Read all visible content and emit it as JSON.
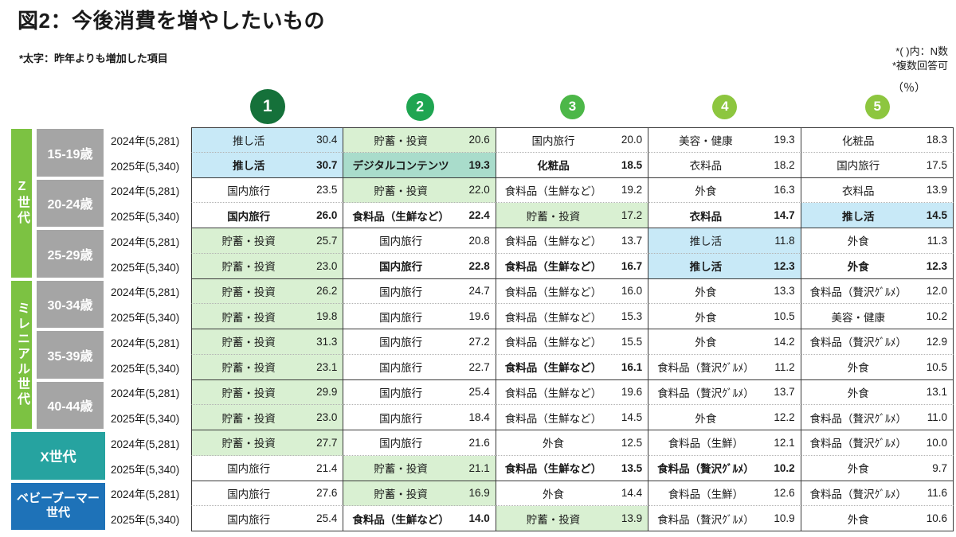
{
  "page": {
    "title": "図2：今後消費を増やしたいもの",
    "legend_note": "*太字：昨年よりも増加した項目",
    "notes_right": [
      "*( )内：N数",
      "*複数回答可"
    ],
    "unit_label": "（％）"
  },
  "rank_circles": [
    "1",
    "2",
    "3",
    "4",
    "5"
  ],
  "colors": {
    "gen_green": "#7cc242",
    "gen_teal": "#26a3a0",
    "gen_blue": "#1e72b8",
    "age_gray": "#a5a5a5",
    "cell_blue": "#c8e9f7",
    "cell_green": "#d9f0d2",
    "cell_teal": "#a9dccb",
    "rank1": "#15713a",
    "rank2": "#1fa551",
    "rank3": "#4cb748",
    "rank4": "#8dc63f",
    "rank5": "#8dc63f"
  },
  "sidebar": {
    "generations": [
      {
        "label": "Z世代",
        "style": "green",
        "vertical": true,
        "row_start": 1,
        "row_span": 6,
        "col_span": 1
      },
      {
        "label": "ミレニアル世代",
        "style": "green",
        "vertical": true,
        "row_start": 7,
        "row_span": 6,
        "col_span": 1
      },
      {
        "label": "X世代",
        "style": "teal",
        "vertical": false,
        "row_start": 13,
        "row_span": 2,
        "col_span": 2
      },
      {
        "label": "ベビーブーマー世代",
        "style": "blue",
        "vertical": false,
        "row_start": 15,
        "row_span": 2,
        "col_span": 2
      }
    ],
    "age_groups": [
      {
        "label": "15-19歳",
        "row_start": 1
      },
      {
        "label": "20-24歳",
        "row_start": 3
      },
      {
        "label": "25-29歳",
        "row_start": 5
      },
      {
        "label": "30-34歳",
        "row_start": 7
      },
      {
        "label": "35-39歳",
        "row_start": 9
      },
      {
        "label": "40-44歳",
        "row_start": 11
      }
    ]
  },
  "chart_data": {
    "type": "table",
    "title": "図2：今後消費を増やしたいもの",
    "unit": "%",
    "rank_headers": [
      "1",
      "2",
      "3",
      "4",
      "5"
    ],
    "bold_meaning": "太字：昨年よりも増加した項目",
    "row_groups": [
      {
        "generation": "Z世代",
        "segment": "15-19歳",
        "rows": [
          {
            "year": "2024年(5,281)",
            "ranks": [
              {
                "item": "推し活",
                "value": "30.4",
                "hl": "blue",
                "bold": false
              },
              {
                "item": "貯蓄・投資",
                "value": "20.6",
                "hl": "green",
                "bold": false
              },
              {
                "item": "国内旅行",
                "value": "20.0",
                "hl": "none",
                "bold": false
              },
              {
                "item": "美容・健康",
                "value": "19.3",
                "hl": "none",
                "bold": false
              },
              {
                "item": "化粧品",
                "value": "18.3",
                "hl": "none",
                "bold": false
              }
            ]
          },
          {
            "year": "2025年(5,340)",
            "ranks": [
              {
                "item": "推し活",
                "value": "30.7",
                "hl": "blue",
                "bold": true
              },
              {
                "item": "デジタルコンテンツ",
                "value": "19.3",
                "hl": "teal",
                "bold": true
              },
              {
                "item": "化粧品",
                "value": "18.5",
                "hl": "none",
                "bold": true
              },
              {
                "item": "衣料品",
                "value": "18.2",
                "hl": "none",
                "bold": false
              },
              {
                "item": "国内旅行",
                "value": "17.5",
                "hl": "none",
                "bold": false
              }
            ]
          }
        ]
      },
      {
        "generation": "Z世代",
        "segment": "20-24歳",
        "rows": [
          {
            "year": "2024年(5,281)",
            "ranks": [
              {
                "item": "国内旅行",
                "value": "23.5",
                "hl": "none",
                "bold": false
              },
              {
                "item": "貯蓄・投資",
                "value": "22.0",
                "hl": "green",
                "bold": false
              },
              {
                "item": "食料品（生鮮など）",
                "value": "19.2",
                "hl": "none",
                "bold": false
              },
              {
                "item": "外食",
                "value": "16.3",
                "hl": "none",
                "bold": false
              },
              {
                "item": "衣料品",
                "value": "13.9",
                "hl": "none",
                "bold": false
              }
            ]
          },
          {
            "year": "2025年(5,340)",
            "ranks": [
              {
                "item": "国内旅行",
                "value": "26.0",
                "hl": "none",
                "bold": true
              },
              {
                "item": "食料品（生鮮など）",
                "value": "22.4",
                "hl": "none",
                "bold": true
              },
              {
                "item": "貯蓄・投資",
                "value": "17.2",
                "hl": "green",
                "bold": false
              },
              {
                "item": "衣料品",
                "value": "14.7",
                "hl": "none",
                "bold": true
              },
              {
                "item": "推し活",
                "value": "14.5",
                "hl": "blue",
                "bold": true
              }
            ]
          }
        ]
      },
      {
        "generation": "Z世代",
        "segment": "25-29歳",
        "rows": [
          {
            "year": "2024年(5,281)",
            "ranks": [
              {
                "item": "貯蓄・投資",
                "value": "25.7",
                "hl": "green",
                "bold": false
              },
              {
                "item": "国内旅行",
                "value": "20.8",
                "hl": "none",
                "bold": false
              },
              {
                "item": "食料品（生鮮など）",
                "value": "13.7",
                "hl": "none",
                "bold": false
              },
              {
                "item": "推し活",
                "value": "11.8",
                "hl": "blue",
                "bold": false
              },
              {
                "item": "外食",
                "value": "11.3",
                "hl": "none",
                "bold": false
              }
            ]
          },
          {
            "year": "2025年(5,340)",
            "ranks": [
              {
                "item": "貯蓄・投資",
                "value": "23.0",
                "hl": "green",
                "bold": false
              },
              {
                "item": "国内旅行",
                "value": "22.8",
                "hl": "none",
                "bold": true
              },
              {
                "item": "食料品（生鮮など）",
                "value": "16.7",
                "hl": "none",
                "bold": true
              },
              {
                "item": "推し活",
                "value": "12.3",
                "hl": "blue",
                "bold": true
              },
              {
                "item": "外食",
                "value": "12.3",
                "hl": "none",
                "bold": true
              }
            ]
          }
        ]
      },
      {
        "generation": "ミレニアル世代",
        "segment": "30-34歳",
        "rows": [
          {
            "year": "2024年(5,281)",
            "ranks": [
              {
                "item": "貯蓄・投資",
                "value": "26.2",
                "hl": "green",
                "bold": false
              },
              {
                "item": "国内旅行",
                "value": "24.7",
                "hl": "none",
                "bold": false
              },
              {
                "item": "食料品（生鮮など）",
                "value": "16.0",
                "hl": "none",
                "bold": false
              },
              {
                "item": "外食",
                "value": "13.3",
                "hl": "none",
                "bold": false
              },
              {
                "item": "食料品（贅沢ｸﾞﾙﾒ）",
                "value": "12.0",
                "hl": "none",
                "bold": false
              }
            ]
          },
          {
            "year": "2025年(5,340)",
            "ranks": [
              {
                "item": "貯蓄・投資",
                "value": "19.8",
                "hl": "green",
                "bold": false
              },
              {
                "item": "国内旅行",
                "value": "19.6",
                "hl": "none",
                "bold": false
              },
              {
                "item": "食料品（生鮮など）",
                "value": "15.3",
                "hl": "none",
                "bold": false
              },
              {
                "item": "外食",
                "value": "10.5",
                "hl": "none",
                "bold": false
              },
              {
                "item": "美容・健康",
                "value": "10.2",
                "hl": "none",
                "bold": false
              }
            ]
          }
        ]
      },
      {
        "generation": "ミレニアル世代",
        "segment": "35-39歳",
        "rows": [
          {
            "year": "2024年(5,281)",
            "ranks": [
              {
                "item": "貯蓄・投資",
                "value": "31.3",
                "hl": "green",
                "bold": false
              },
              {
                "item": "国内旅行",
                "value": "27.2",
                "hl": "none",
                "bold": false
              },
              {
                "item": "食料品（生鮮など）",
                "value": "15.5",
                "hl": "none",
                "bold": false
              },
              {
                "item": "外食",
                "value": "14.2",
                "hl": "none",
                "bold": false
              },
              {
                "item": "食料品（贅沢ｸﾞﾙﾒ）",
                "value": "12.9",
                "hl": "none",
                "bold": false
              }
            ]
          },
          {
            "year": "2025年(5,340)",
            "ranks": [
              {
                "item": "貯蓄・投資",
                "value": "23.1",
                "hl": "green",
                "bold": false
              },
              {
                "item": "国内旅行",
                "value": "22.7",
                "hl": "none",
                "bold": false
              },
              {
                "item": "食料品（生鮮など）",
                "value": "16.1",
                "hl": "none",
                "bold": true
              },
              {
                "item": "食料品（贅沢ｸﾞﾙﾒ）",
                "value": "11.2",
                "hl": "none",
                "bold": false
              },
              {
                "item": "外食",
                "value": "10.5",
                "hl": "none",
                "bold": false
              }
            ]
          }
        ]
      },
      {
        "generation": "ミレニアル世代",
        "segment": "40-44歳",
        "rows": [
          {
            "year": "2024年(5,281)",
            "ranks": [
              {
                "item": "貯蓄・投資",
                "value": "29.9",
                "hl": "green",
                "bold": false
              },
              {
                "item": "国内旅行",
                "value": "25.4",
                "hl": "none",
                "bold": false
              },
              {
                "item": "食料品（生鮮など）",
                "value": "19.6",
                "hl": "none",
                "bold": false
              },
              {
                "item": "食料品（贅沢ｸﾞﾙﾒ）",
                "value": "13.7",
                "hl": "none",
                "bold": false
              },
              {
                "item": "外食",
                "value": "13.1",
                "hl": "none",
                "bold": false
              }
            ]
          },
          {
            "year": "2025年(5,340)",
            "ranks": [
              {
                "item": "貯蓄・投資",
                "value": "23.0",
                "hl": "green",
                "bold": false
              },
              {
                "item": "国内旅行",
                "value": "18.4",
                "hl": "none",
                "bold": false
              },
              {
                "item": "食料品（生鮮など）",
                "value": "14.5",
                "hl": "none",
                "bold": false
              },
              {
                "item": "外食",
                "value": "12.2",
                "hl": "none",
                "bold": false
              },
              {
                "item": "食料品（贅沢ｸﾞﾙﾒ）",
                "value": "11.0",
                "hl": "none",
                "bold": false
              }
            ]
          }
        ]
      },
      {
        "generation": "X世代",
        "segment": "",
        "rows": [
          {
            "year": "2024年(5,281)",
            "ranks": [
              {
                "item": "貯蓄・投資",
                "value": "27.7",
                "hl": "green",
                "bold": false
              },
              {
                "item": "国内旅行",
                "value": "21.6",
                "hl": "none",
                "bold": false
              },
              {
                "item": "外食",
                "value": "12.5",
                "hl": "none",
                "bold": false
              },
              {
                "item": "食料品（生鮮）",
                "value": "12.1",
                "hl": "none",
                "bold": false
              },
              {
                "item": "食料品（贅沢ｸﾞﾙﾒ）",
                "value": "10.0",
                "hl": "none",
                "bold": false
              }
            ]
          },
          {
            "year": "2025年(5,340)",
            "ranks": [
              {
                "item": "国内旅行",
                "value": "21.4",
                "hl": "none",
                "bold": false
              },
              {
                "item": "貯蓄・投資",
                "value": "21.1",
                "hl": "green",
                "bold": false
              },
              {
                "item": "食料品（生鮮など）",
                "value": "13.5",
                "hl": "none",
                "bold": true
              },
              {
                "item": "食料品（贅沢ｸﾞﾙﾒ）",
                "value": "10.2",
                "hl": "none",
                "bold": true
              },
              {
                "item": "外食",
                "value": "9.7",
                "hl": "none",
                "bold": false
              }
            ]
          }
        ]
      },
      {
        "generation": "ベビーブーマー世代",
        "segment": "",
        "rows": [
          {
            "year": "2024年(5,281)",
            "ranks": [
              {
                "item": "国内旅行",
                "value": "27.6",
                "hl": "none",
                "bold": false
              },
              {
                "item": "貯蓄・投資",
                "value": "16.9",
                "hl": "green",
                "bold": false
              },
              {
                "item": "外食",
                "value": "14.4",
                "hl": "none",
                "bold": false
              },
              {
                "item": "食料品（生鮮）",
                "value": "12.6",
                "hl": "none",
                "bold": false
              },
              {
                "item": "食料品（贅沢ｸﾞﾙﾒ）",
                "value": "11.6",
                "hl": "none",
                "bold": false
              }
            ]
          },
          {
            "year": "2025年(5,340)",
            "ranks": [
              {
                "item": "国内旅行",
                "value": "25.4",
                "hl": "none",
                "bold": false
              },
              {
                "item": "食料品（生鮮など）",
                "value": "14.0",
                "hl": "none",
                "bold": true
              },
              {
                "item": "貯蓄・投資",
                "value": "13.9",
                "hl": "green",
                "bold": false
              },
              {
                "item": "食料品（贅沢ｸﾞﾙﾒ）",
                "value": "10.9",
                "hl": "none",
                "bold": false
              },
              {
                "item": "外食",
                "value": "10.6",
                "hl": "none",
                "bold": false
              }
            ]
          }
        ]
      }
    ]
  }
}
